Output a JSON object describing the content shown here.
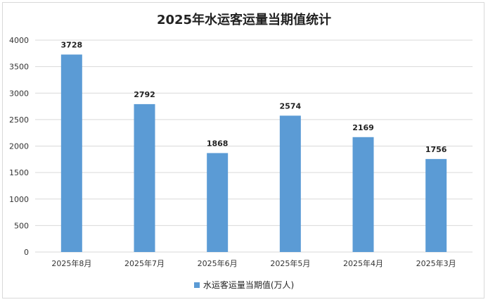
{
  "chart_data": {
    "type": "bar",
    "title": "2025年水运客运量当期值统计",
    "categories": [
      "2025年8月",
      "2025年7月",
      "2025年6月",
      "2025年5月",
      "2025年4月",
      "2025年3月"
    ],
    "series": [
      {
        "name": "水运客运量当期值(万人)",
        "values": [
          3728,
          2792,
          1868,
          2574,
          2169,
          1756
        ]
      }
    ],
    "data_labels": [
      "3728",
      "2792",
      "1868",
      "2574",
      "2169",
      "1756"
    ],
    "yticks": [
      "0",
      "500",
      "1000",
      "1500",
      "2000",
      "2500",
      "3000",
      "3500",
      "4000"
    ],
    "ylim": [
      0,
      4000
    ],
    "grid": true,
    "legend_position": "bottom",
    "bar_color": "#5b9bd5",
    "grid_color": "#d9d9d9"
  }
}
